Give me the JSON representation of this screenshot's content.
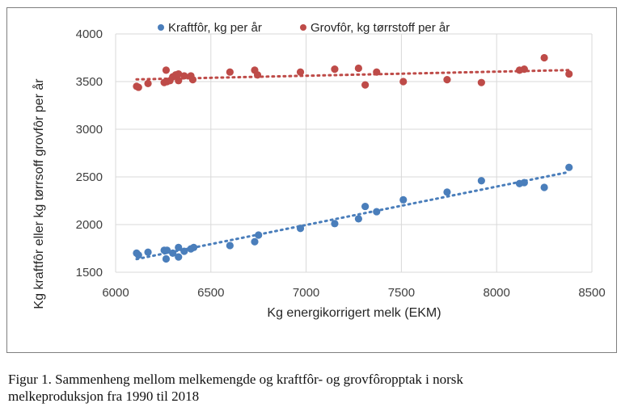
{
  "chart_data": {
    "type": "scatter",
    "title": "",
    "xlabel": "Kg energikorrigert melk (EKM)",
    "ylabel": "Kg kraftfôr eller kg tørrsoff grovfôr per år",
    "xlim": [
      6000,
      8500
    ],
    "ylim": [
      1500,
      4000
    ],
    "xticks": [
      6000,
      6500,
      7000,
      7500,
      8000,
      8500
    ],
    "yticks": [
      1500,
      2000,
      2500,
      3000,
      3500,
      4000
    ],
    "grid": true,
    "legend_position": "top",
    "series": [
      {
        "name": "Kraftfôr, kg per år",
        "color": "#4a7ebb",
        "trendline": "linear",
        "points": [
          [
            6110,
            1700
          ],
          [
            6120,
            1680
          ],
          [
            6170,
            1710
          ],
          [
            6255,
            1730
          ],
          [
            6270,
            1730
          ],
          [
            6265,
            1640
          ],
          [
            6300,
            1700
          ],
          [
            6330,
            1760
          ],
          [
            6330,
            1660
          ],
          [
            6360,
            1720
          ],
          [
            6395,
            1745
          ],
          [
            6410,
            1760
          ],
          [
            6600,
            1780
          ],
          [
            6730,
            1820
          ],
          [
            6750,
            1890
          ],
          [
            6970,
            1960
          ],
          [
            7150,
            2010
          ],
          [
            7275,
            2060
          ],
          [
            7310,
            2190
          ],
          [
            7370,
            2135
          ],
          [
            7510,
            2260
          ],
          [
            7740,
            2340
          ],
          [
            7920,
            2460
          ],
          [
            8120,
            2430
          ],
          [
            8145,
            2440
          ],
          [
            8250,
            2390
          ],
          [
            8380,
            2600
          ]
        ]
      },
      {
        "name": "Grovfôr, kg tørrstoff per år",
        "color": "#be4b48",
        "trendline": "linear",
        "points": [
          [
            6110,
            3450
          ],
          [
            6120,
            3440
          ],
          [
            6170,
            3480
          ],
          [
            6265,
            3620
          ],
          [
            6255,
            3490
          ],
          [
            6270,
            3500
          ],
          [
            6285,
            3510
          ],
          [
            6300,
            3550
          ],
          [
            6315,
            3570
          ],
          [
            6330,
            3580
          ],
          [
            6330,
            3510
          ],
          [
            6360,
            3560
          ],
          [
            6395,
            3560
          ],
          [
            6405,
            3520
          ],
          [
            6600,
            3600
          ],
          [
            6730,
            3620
          ],
          [
            6745,
            3570
          ],
          [
            6970,
            3600
          ],
          [
            7150,
            3630
          ],
          [
            7275,
            3640
          ],
          [
            7310,
            3465
          ],
          [
            7370,
            3600
          ],
          [
            7510,
            3500
          ],
          [
            7740,
            3520
          ],
          [
            7920,
            3490
          ],
          [
            8120,
            3620
          ],
          [
            8145,
            3630
          ],
          [
            8250,
            3750
          ],
          [
            8380,
            3580
          ]
        ]
      }
    ]
  },
  "caption": {
    "line1": "Figur 1. Sammenheng mellom melkemengde og kraftfôr- og grovfôropptak i norsk",
    "line2": "melkeproduksjon fra 1990 til 2018"
  }
}
